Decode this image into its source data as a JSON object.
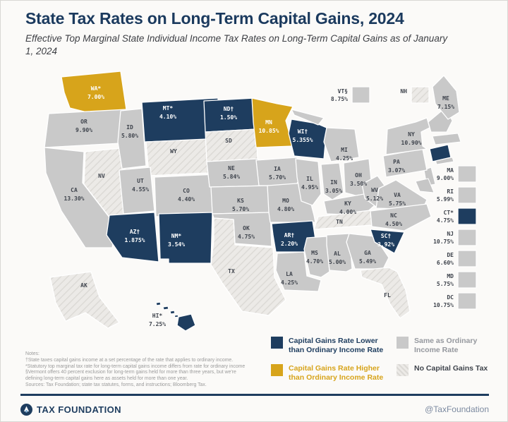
{
  "header": {
    "title": "State Tax Rates on Long-Term Capital Gains, 2024",
    "subtitle": "Effective Top Marginal State Individual Income Tax Rates on Long-Term Capital Gains as of January 1, 2024"
  },
  "colors": {
    "navy_lower": "#1e3d5f",
    "gold_higher": "#d7a41b",
    "gray_same": "#c9c9c9",
    "hatch_none": "#eceae7",
    "title": "#1b3a5e"
  },
  "map": {
    "states": [
      {
        "abbr": "WA",
        "sup": "*",
        "rate": "7.00%",
        "category": "higher"
      },
      {
        "abbr": "OR",
        "sup": "",
        "rate": "9.90%",
        "category": "same"
      },
      {
        "abbr": "CA",
        "sup": "",
        "rate": "13.30%",
        "category": "same"
      },
      {
        "abbr": "NV",
        "sup": "",
        "rate": null,
        "category": "none"
      },
      {
        "abbr": "ID",
        "sup": "",
        "rate": "5.80%",
        "category": "same"
      },
      {
        "abbr": "MT",
        "sup": "*",
        "rate": "4.10%",
        "category": "lower"
      },
      {
        "abbr": "WY",
        "sup": "",
        "rate": null,
        "category": "none"
      },
      {
        "abbr": "UT",
        "sup": "",
        "rate": "4.55%",
        "category": "same"
      },
      {
        "abbr": "CO",
        "sup": "",
        "rate": "4.40%",
        "category": "same"
      },
      {
        "abbr": "AZ",
        "sup": "†",
        "rate": "1.875%",
        "category": "lower"
      },
      {
        "abbr": "NM",
        "sup": "*",
        "rate": "3.54%",
        "category": "lower"
      },
      {
        "abbr": "ND",
        "sup": "†",
        "rate": "1.50%",
        "category": "lower"
      },
      {
        "abbr": "SD",
        "sup": "",
        "rate": null,
        "category": "none"
      },
      {
        "abbr": "NE",
        "sup": "",
        "rate": "5.84%",
        "category": "same"
      },
      {
        "abbr": "KS",
        "sup": "",
        "rate": "5.70%",
        "category": "same"
      },
      {
        "abbr": "OK",
        "sup": "",
        "rate": "4.75%",
        "category": "same"
      },
      {
        "abbr": "TX",
        "sup": "",
        "rate": null,
        "category": "none"
      },
      {
        "abbr": "MN",
        "sup": "",
        "rate": "10.85%",
        "category": "higher"
      },
      {
        "abbr": "IA",
        "sup": "",
        "rate": "5.70%",
        "category": "same"
      },
      {
        "abbr": "MO",
        "sup": "",
        "rate": "4.80%",
        "category": "same"
      },
      {
        "abbr": "AR",
        "sup": "†",
        "rate": "2.20%",
        "category": "lower"
      },
      {
        "abbr": "LA",
        "sup": "",
        "rate": "4.25%",
        "category": "same"
      },
      {
        "abbr": "WI",
        "sup": "†",
        "rate": "5.355%",
        "category": "lower"
      },
      {
        "abbr": "IL",
        "sup": "",
        "rate": "4.95%",
        "category": "same"
      },
      {
        "abbr": "MI",
        "sup": "",
        "rate": "4.25%",
        "category": "same"
      },
      {
        "abbr": "IN",
        "sup": "",
        "rate": "3.05%",
        "category": "same"
      },
      {
        "abbr": "OH",
        "sup": "",
        "rate": "3.50%",
        "category": "same"
      },
      {
        "abbr": "KY",
        "sup": "",
        "rate": "4.00%",
        "category": "same"
      },
      {
        "abbr": "TN",
        "sup": "",
        "rate": null,
        "category": "none"
      },
      {
        "abbr": "MS",
        "sup": "",
        "rate": "4.70%",
        "category": "same"
      },
      {
        "abbr": "AL",
        "sup": "",
        "rate": "5.00%",
        "category": "same"
      },
      {
        "abbr": "GA",
        "sup": "",
        "rate": "5.49%",
        "category": "same"
      },
      {
        "abbr": "FL",
        "sup": "",
        "rate": null,
        "category": "none"
      },
      {
        "abbr": "WV",
        "sup": "",
        "rate": "5.12%",
        "category": "same"
      },
      {
        "abbr": "VA",
        "sup": "",
        "rate": "5.75%",
        "category": "same"
      },
      {
        "abbr": "NC",
        "sup": "",
        "rate": "4.50%",
        "category": "same"
      },
      {
        "abbr": "SC",
        "sup": "†",
        "rate": "3.92%",
        "category": "lower"
      },
      {
        "abbr": "PA",
        "sup": "",
        "rate": "3.07%",
        "category": "same"
      },
      {
        "abbr": "NY",
        "sup": "",
        "rate": "10.90%",
        "category": "same"
      },
      {
        "abbr": "ME",
        "sup": "",
        "rate": "7.15%",
        "category": "same"
      },
      {
        "abbr": "VT",
        "sup": "§",
        "rate": "8.75%",
        "category": "same"
      },
      {
        "abbr": "NH",
        "sup": "",
        "rate": null,
        "category": "none"
      },
      {
        "abbr": "MA",
        "sup": "",
        "rate": "9.00%",
        "category": "same"
      },
      {
        "abbr": "RI",
        "sup": "",
        "rate": "5.99%",
        "category": "same"
      },
      {
        "abbr": "CT",
        "sup": "*",
        "rate": "4.75%",
        "category": "lower"
      },
      {
        "abbr": "NJ",
        "sup": "",
        "rate": "10.75%",
        "category": "same"
      },
      {
        "abbr": "DE",
        "sup": "",
        "rate": "6.60%",
        "category": "same"
      },
      {
        "abbr": "MD",
        "sup": "",
        "rate": "5.75%",
        "category": "same"
      },
      {
        "abbr": "DC",
        "sup": "",
        "rate": "10.75%",
        "category": "same"
      },
      {
        "abbr": "AK",
        "sup": "",
        "rate": null,
        "category": "none"
      },
      {
        "abbr": "HI",
        "sup": "*",
        "rate": "7.25%",
        "category": "lower"
      }
    ]
  },
  "legend": {
    "items": [
      {
        "label": "Capital Gains Rate Lower than Ordinary Income Rate",
        "category": "lower"
      },
      {
        "label": "Capital Gains Rate Higher than Ordinary Income Rate",
        "category": "higher"
      },
      {
        "label": "Same as Ordinary Income Rate",
        "category": "same"
      },
      {
        "label": "No Capital Gains Tax",
        "category": "none"
      }
    ]
  },
  "notes": {
    "lines": [
      "Notes:",
      "†State taxes capital gains income at a set percentage of the rate that applies to ordinary income.",
      "*Statutory top marginal tax rate for long-term capital gains income differs from rate for ordinary income",
      "§Vermont offers 40 percent exclusion for long-term gains held for more than three years, but we're",
      "defining long-term capital gains here as assets held for more than one year.",
      "Sources: Tax Foundation; state tax statutes, forms, and instructions; Bloomberg Tax."
    ]
  },
  "footer": {
    "brand": "TAX FOUNDATION",
    "handle": "@TaxFoundation"
  }
}
